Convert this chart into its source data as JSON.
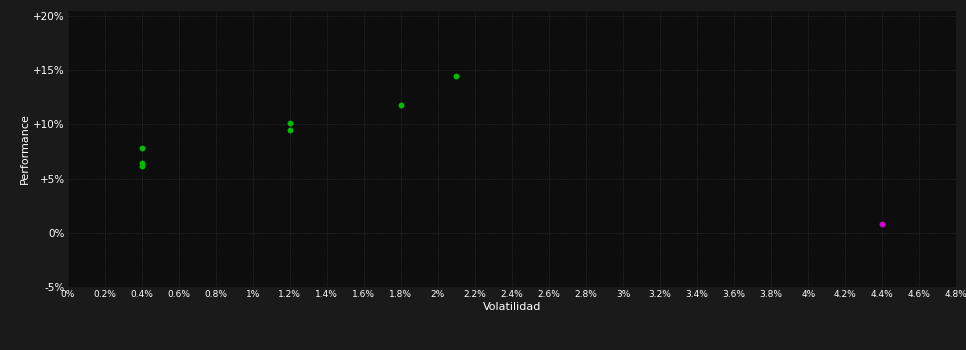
{
  "background_color": "#1a1a1a",
  "plot_bg_color": "#0d0d0d",
  "grid_color": "#3a3a3a",
  "text_color": "#ffffff",
  "xlabel": "Volatilidad",
  "ylabel": "Performance",
  "xlim": [
    0,
    0.048
  ],
  "ylim": [
    -0.05,
    0.205
  ],
  "xtick_values": [
    0.0,
    0.002,
    0.004,
    0.006,
    0.008,
    0.01,
    0.012,
    0.014,
    0.016,
    0.018,
    0.02,
    0.022,
    0.024,
    0.026,
    0.028,
    0.03,
    0.032,
    0.034,
    0.036,
    0.038,
    0.04,
    0.042,
    0.044,
    0.046,
    0.048
  ],
  "ytick_values": [
    -0.05,
    0.0,
    0.05,
    0.1,
    0.15,
    0.2
  ],
  "xtick_labels": [
    "0%",
    "0.2%",
    "0.4%",
    "0.6%",
    "0.8%",
    "1%",
    "1.2%",
    "1.4%",
    "1.6%",
    "1.8%",
    "2%",
    "2.2%",
    "2.4%",
    "2.6%",
    "2.8%",
    "3%",
    "3.2%",
    "3.4%",
    "3.6%",
    "3.8%",
    "4%",
    "4.2%",
    "4.4%",
    "4.6%",
    "4.8%"
  ],
  "ytick_labels": [
    "-5%",
    "0%",
    "+5%",
    "+10%",
    "+15%",
    "+20%"
  ],
  "green_points": [
    [
      0.004,
      0.078
    ],
    [
      0.004,
      0.064
    ],
    [
      0.004,
      0.062
    ],
    [
      0.012,
      0.101
    ],
    [
      0.012,
      0.095
    ],
    [
      0.018,
      0.118
    ],
    [
      0.021,
      0.145
    ]
  ],
  "magenta_points": [
    [
      0.044,
      0.008
    ]
  ],
  "green_color": "#00bb00",
  "magenta_color": "#cc00cc",
  "point_size": 18
}
